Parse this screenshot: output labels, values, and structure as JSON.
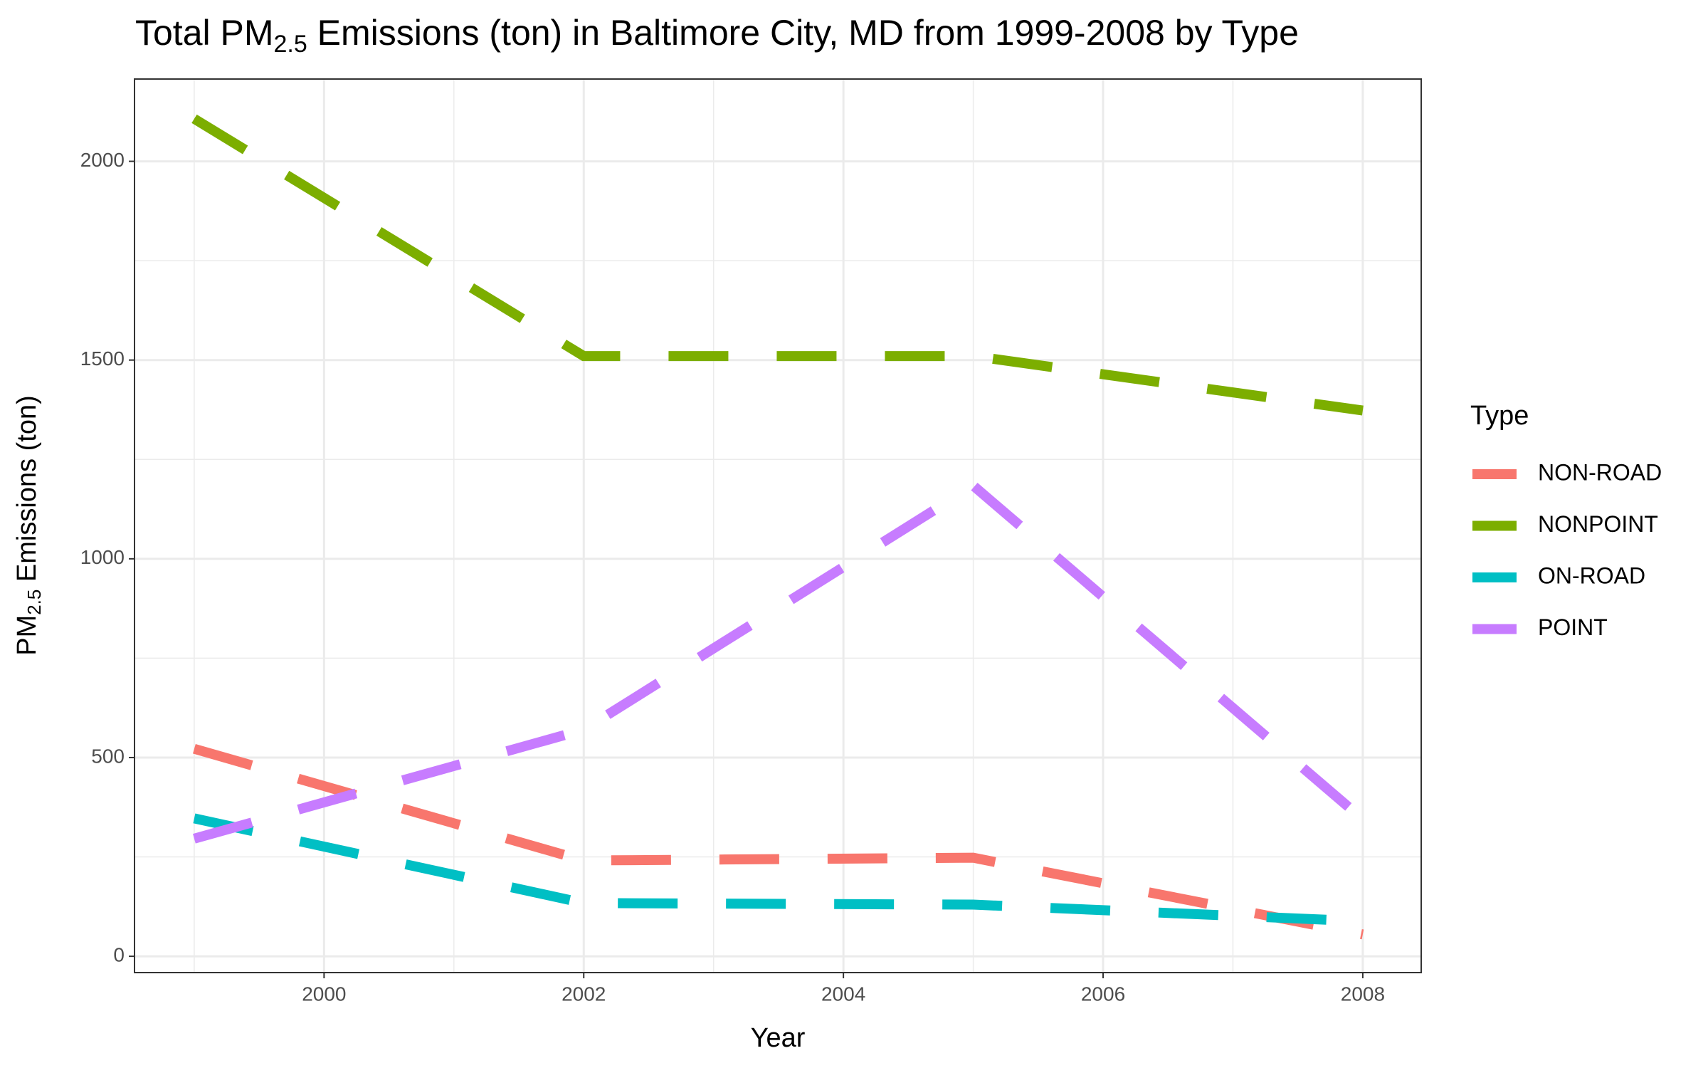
{
  "chart_data": {
    "type": "line",
    "title": {
      "text": "Total PM",
      "sub": "2.5",
      "rest": " Emissions (ton) in Baltimore City, MD from 1999-2008 by Type"
    },
    "x_label": "Year",
    "y_label": {
      "text": "PM",
      "sub": "2.5",
      "rest": " Emissions (ton)"
    },
    "legend_title": "Type",
    "legend_position": "right",
    "grid": true,
    "x": [
      1999,
      2002,
      2005,
      2008
    ],
    "xlim": [
      1998.54,
      2008.45
    ],
    "xticks": [
      2000,
      2002,
      2004,
      2006,
      2008
    ],
    "ylim": [
      -41,
      2207
    ],
    "yticks": [
      0,
      500,
      1000,
      1500,
      2000
    ],
    "line_style": "dashed",
    "series": [
      {
        "name": "NON-ROAD",
        "color": "#F8766D",
        "values": [
          522,
          241,
          248,
          55
        ]
      },
      {
        "name": "NONPOINT",
        "color": "#7CAE00",
        "values": [
          2107,
          1510,
          1510,
          1373
        ]
      },
      {
        "name": "ON-ROAD",
        "color": "#00BFC4",
        "values": [
          347,
          134,
          130,
          88
        ]
      },
      {
        "name": "POINT",
        "color": "#C77CFF",
        "values": [
          296,
          570,
          1184,
          345
        ]
      }
    ]
  }
}
